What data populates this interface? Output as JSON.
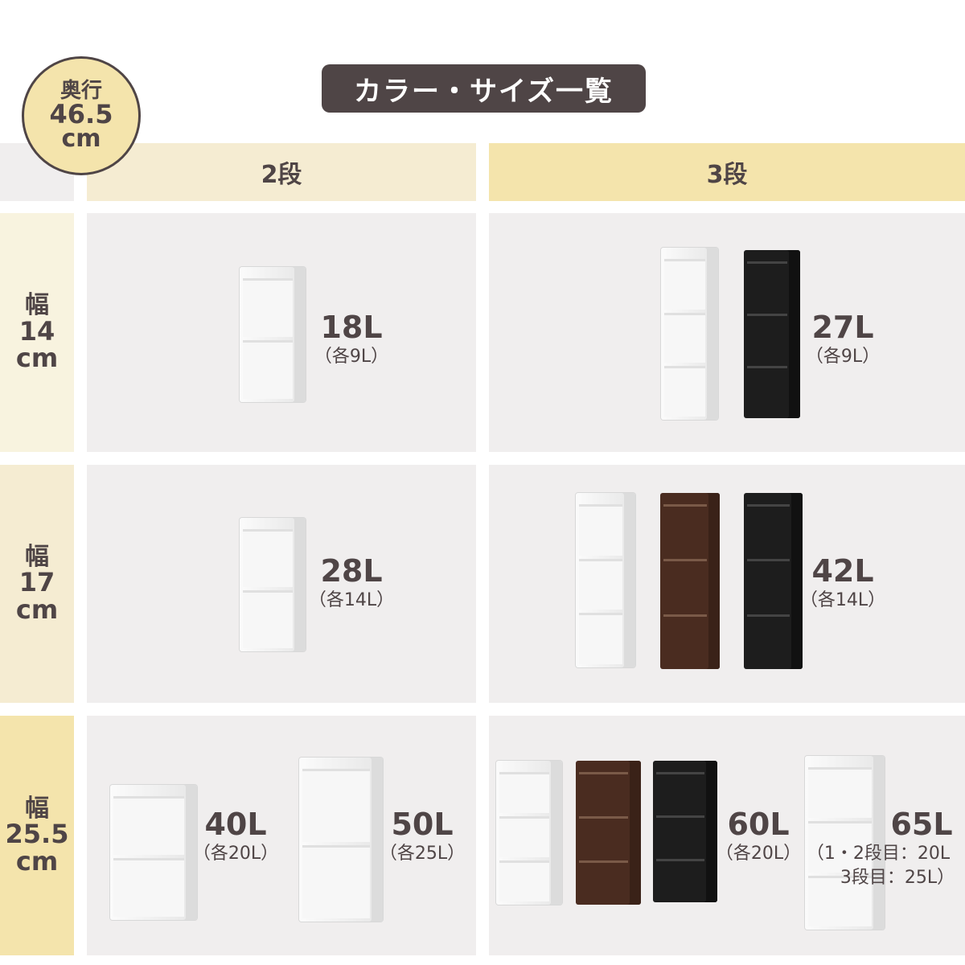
{
  "title": "カラー・サイズ一覧",
  "depth_badge": {
    "label": "奥行",
    "value": "46.5",
    "unit": "cm"
  },
  "columns": [
    "2段",
    "3段"
  ],
  "rows": [
    {
      "label": "幅",
      "value": "14",
      "unit": "cm"
    },
    {
      "label": "幅",
      "value": "17",
      "unit": "cm"
    },
    {
      "label": "幅",
      "value": "25.5",
      "unit": "cm"
    }
  ],
  "products": [
    {
      "volume": "18L",
      "detail": "（各9L）",
      "colors": [
        "white"
      ]
    },
    {
      "volume": "27L",
      "detail": "（各9L）",
      "colors": [
        "white",
        "black"
      ]
    },
    {
      "volume": "28L",
      "detail": "（各14L）",
      "colors": [
        "white"
      ]
    },
    {
      "volume": "42L",
      "detail": "（各14L）",
      "colors": [
        "white",
        "brown",
        "black"
      ]
    },
    {
      "volume": "40L",
      "detail": "（各20L）",
      "colors": [
        "white"
      ]
    },
    {
      "volume": "50L",
      "detail": "（各25L）",
      "colors": [
        "white"
      ]
    },
    {
      "volume": "60L",
      "detail": "（各20L）",
      "colors": [
        "white",
        "brown",
        "black"
      ]
    },
    {
      "volume": "65L",
      "detail": "（1・2段目：20L",
      "detail2": "3段目：25L）",
      "colors": [
        "white"
      ]
    }
  ],
  "colors": {
    "text": "#4f4546",
    "cell": "#f0eeee",
    "header_2": "#f5ecd2",
    "header_3": "#f4e4ac",
    "white": "#f7f7f7",
    "brown": "#4a2c20",
    "black": "#1d1d1d"
  }
}
